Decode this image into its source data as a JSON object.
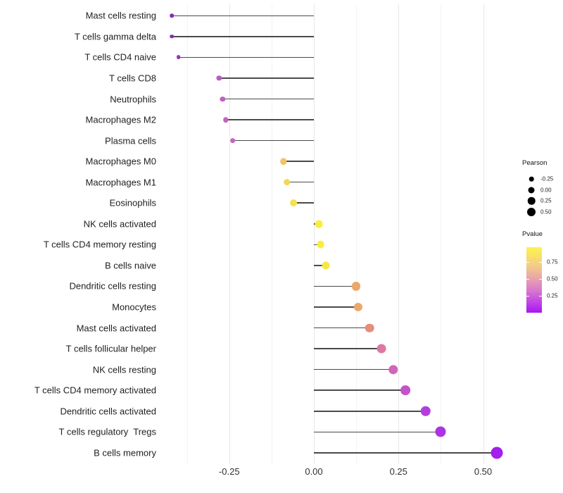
{
  "chart_data": {
    "type": "scatter",
    "variant": "lollipop",
    "orientation": "horizontal",
    "title": "",
    "xlabel": "",
    "ylabel": "",
    "grid": "on",
    "baseline": 0,
    "xlim": [
      -0.46,
      0.6
    ],
    "x_tick_labels": [
      "-0.25",
      "0.00",
      "0.25",
      "0.50"
    ],
    "x_tick_values": [
      -0.25,
      0,
      0.25,
      0.5
    ],
    "x_minor_tick_values": [
      -0.375,
      -0.125,
      0.125,
      0.375
    ],
    "points": [
      {
        "label": "Mast cells resting",
        "pearson": -0.42,
        "pvalue": 0.12,
        "color": "#8A2AB4"
      },
      {
        "label": "T cells gamma delta",
        "pearson": -0.42,
        "pvalue": 0.12,
        "color": "#8A2AB4"
      },
      {
        "label": "T cells CD4 naive",
        "pearson": -0.4,
        "pvalue": 0.16,
        "color": "#982FC6"
      },
      {
        "label": "T cells CD8",
        "pearson": -0.28,
        "pvalue": 0.3,
        "color": "#BC5AC4"
      },
      {
        "label": "Neutrophils",
        "pearson": -0.27,
        "pvalue": 0.32,
        "color": "#C05FC3"
      },
      {
        "label": "Macrophages M2",
        "pearson": -0.26,
        "pvalue": 0.33,
        "color": "#C363C0"
      },
      {
        "label": "Plasma cells",
        "pearson": -0.24,
        "pvalue": 0.35,
        "color": "#C767BE"
      },
      {
        "label": "Macrophages M0",
        "pearson": -0.09,
        "pvalue": 0.78,
        "color": "#F0C365"
      },
      {
        "label": "Macrophages M1",
        "pearson": -0.08,
        "pvalue": 0.85,
        "color": "#F4D656"
      },
      {
        "label": "Eosinophils",
        "pearson": -0.06,
        "pvalue": 0.9,
        "color": "#F6E24A"
      },
      {
        "label": "NK cells activated",
        "pearson": 0.015,
        "pvalue": 0.95,
        "color": "#F9EE3C"
      },
      {
        "label": "T cells CD4 memory resting",
        "pearson": 0.02,
        "pvalue": 0.95,
        "color": "#F9EE3C"
      },
      {
        "label": "B cells naive",
        "pearson": 0.035,
        "pvalue": 0.92,
        "color": "#F7E741"
      },
      {
        "label": "Dendritic cells resting",
        "pearson": 0.125,
        "pvalue": 0.72,
        "color": "#ECA76A"
      },
      {
        "label": "Monocytes",
        "pearson": 0.13,
        "pvalue": 0.72,
        "color": "#ECA76A"
      },
      {
        "label": "Mast cells activated",
        "pearson": 0.165,
        "pvalue": 0.62,
        "color": "#E58E7C"
      },
      {
        "label": "T cells follicular helper",
        "pearson": 0.2,
        "pvalue": 0.52,
        "color": "#DB78A4"
      },
      {
        "label": "NK cells resting",
        "pearson": 0.235,
        "pvalue": 0.44,
        "color": "#D165B9"
      },
      {
        "label": "T cells CD4 memory activated",
        "pearson": 0.27,
        "pvalue": 0.34,
        "color": "#C452C9"
      },
      {
        "label": "Dendritic cells activated",
        "pearson": 0.33,
        "pvalue": 0.27,
        "color": "#B43EDB"
      },
      {
        "label": "T cells regulatory  Tregs",
        "pearson": 0.375,
        "pvalue": 0.22,
        "color": "#AC33E3"
      },
      {
        "label": "B cells memory",
        "pearson": 0.54,
        "pvalue": 0.08,
        "color": "#A21FEE"
      }
    ],
    "legend_size": {
      "title": "Pearson",
      "tick_labels": [
        "-0.25",
        "0.00",
        "0.25",
        "0.50"
      ],
      "tick_values": [
        -0.25,
        0,
        0.25,
        0.5
      ],
      "dot_diameters": [
        6.5,
        9,
        10.5,
        12
      ]
    },
    "legend_color": {
      "title": "Pvalue",
      "tick_labels": [
        "0.75",
        "0.50",
        "0.25"
      ],
      "tick_values": [
        0.75,
        0.5,
        0.25
      ],
      "gradient_stops": [
        {
          "pos": 0.0,
          "color": "#FCF44E"
        },
        {
          "pos": 0.28,
          "color": "#F3CC87"
        },
        {
          "pos": 0.48,
          "color": "#E8A3AB"
        },
        {
          "pos": 0.66,
          "color": "#D878CE"
        },
        {
          "pos": 0.84,
          "color": "#C144E6"
        },
        {
          "pos": 1.0,
          "color": "#A716F2"
        }
      ]
    }
  },
  "colors": {
    "background": "#ffffff",
    "stem": "#4a4a4a",
    "grid_major": "#e7e7e7",
    "grid_minor": "#f3f3f3",
    "axis_text": "#303030",
    "legend_dot": "#000000"
  }
}
